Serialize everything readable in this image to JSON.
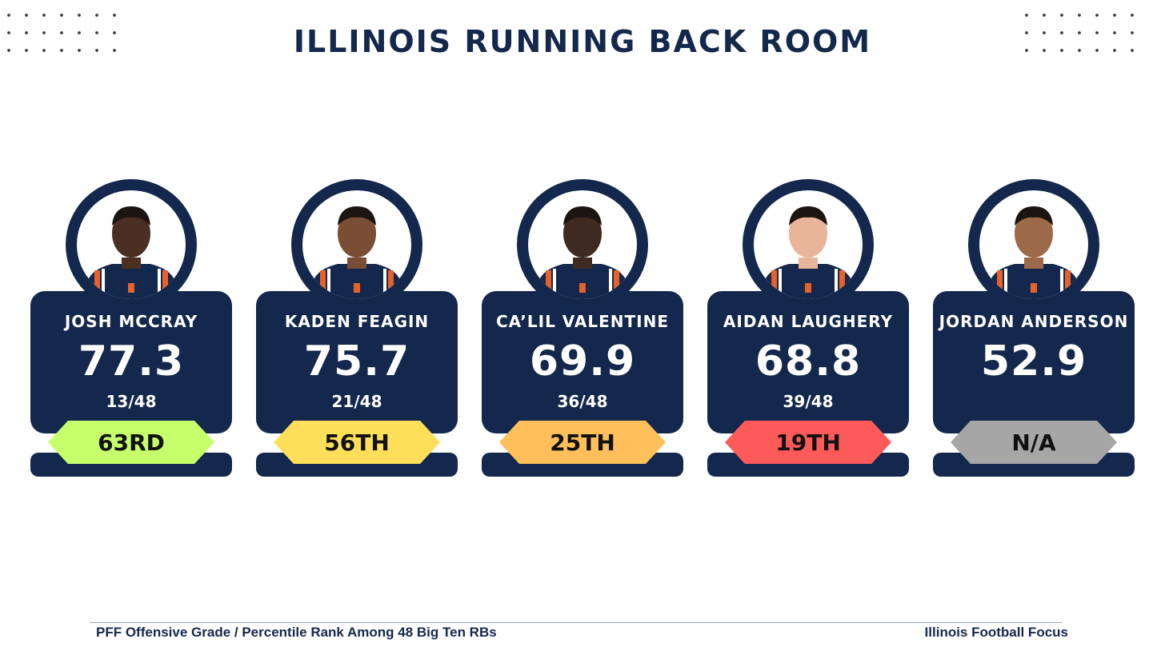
{
  "title": "ILLINOIS RUNNING BACK ROOM",
  "colors": {
    "navy": "#13284c",
    "orange": "#e8612a"
  },
  "players": [
    {
      "name": "JOSH MCCRAY",
      "grade": "77.3",
      "rank": "13/48",
      "percentile": "63RD",
      "badge_color": "#c6ff6b",
      "photo": "player-headshot"
    },
    {
      "name": "KADEN FEAGIN",
      "grade": "75.7",
      "rank": "21/48",
      "percentile": "56TH",
      "badge_color": "#ffdf5a",
      "photo": "player-headshot"
    },
    {
      "name": "CA’LIL VALENTINE",
      "grade": "69.9",
      "rank": "36/48",
      "percentile": "25TH",
      "badge_color": "#ffbf5a",
      "photo": "player-headshot"
    },
    {
      "name": "AIDAN LAUGHERY",
      "grade": "68.8",
      "rank": "39/48",
      "percentile": "19TH",
      "badge_color": "#ff5a5a",
      "photo": "player-headshot"
    },
    {
      "name": "JORDAN ANDERSON",
      "grade": "52.9",
      "rank": "",
      "percentile": "N/A",
      "badge_color": "#a6a6a6",
      "photo": "player-headshot"
    }
  ],
  "footer": {
    "left": "PFF Offensive Grade / Percentile Rank Among 48 Big Ten RBs",
    "right": "Illinois Football Focus"
  }
}
